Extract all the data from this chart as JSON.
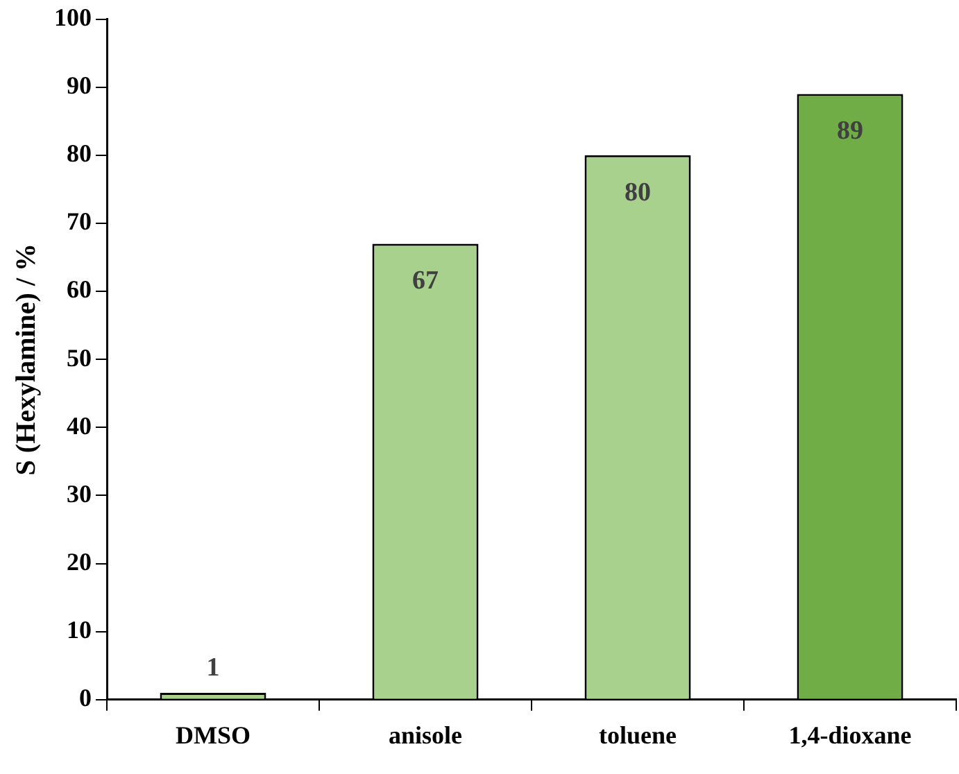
{
  "chart_data": {
    "type": "bar",
    "ylabel": "S (Hexylamine) / %",
    "categories": [
      "DMSO",
      "anisole",
      "toluene",
      "1,4-dioxane"
    ],
    "values": [
      1,
      67,
      80,
      89
    ],
    "colors": [
      "#a9d18e",
      "#a9d18e",
      "#a9d18e",
      "#70ad47"
    ],
    "ylim": [
      0,
      100
    ],
    "yticks": [
      0,
      10,
      20,
      30,
      40,
      50,
      60,
      70,
      80,
      90,
      100
    ],
    "data_labels": true,
    "grid": false,
    "legend": false
  }
}
